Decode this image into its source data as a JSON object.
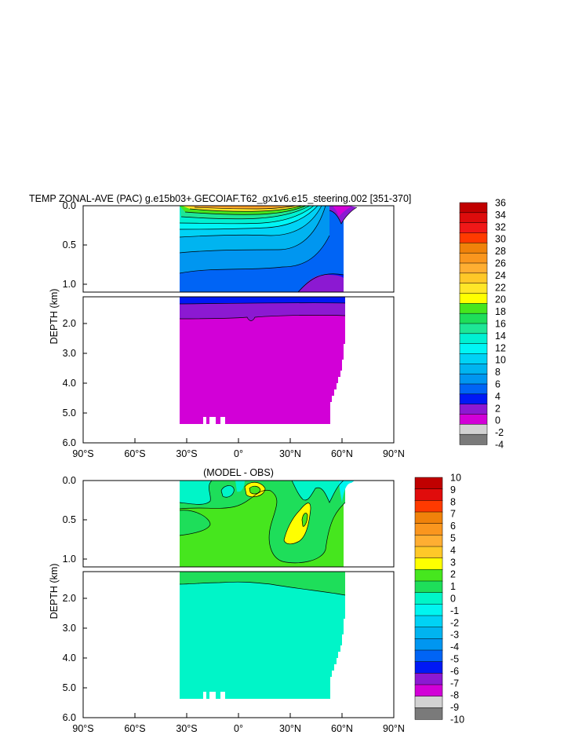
{
  "chart_data": [
    {
      "type": "heatmap",
      "title": "TEMP ZONAL-AVE (PAC) g.e15b03+.GECOIAF.T62_gx1v6.e15_steering.002 [351-370]",
      "xlabel": "",
      "ylabel": "DEPTH (km)",
      "x_ticks": [
        "90°S",
        "60°S",
        "30°S",
        "0°",
        "30°N",
        "60°N",
        "90°N"
      ],
      "y_ticks_upper": [
        "0.0",
        "0.5",
        "1.0"
      ],
      "y_ticks_lower": [
        "2.0",
        "3.0",
        "4.0",
        "5.0",
        "6.0"
      ],
      "xlim": [
        -90,
        90
      ],
      "ylim_upper_km": [
        0,
        1.1
      ],
      "ylim_lower_km": [
        1.1,
        6.0
      ],
      "data_extent_lat": [
        -34,
        62
      ],
      "data_max_depth_km": 5.4,
      "colorbar_labels": [
        "36",
        "34",
        "32",
        "30",
        "28",
        "26",
        "24",
        "22",
        "20",
        "18",
        "16",
        "14",
        "12",
        "10",
        "8",
        "6",
        "4",
        "2",
        "0",
        "-2",
        "-4"
      ],
      "colorbar_colors": [
        "#c00000",
        "#dd0c0c",
        "#f01818",
        "#ff3a00",
        "#f0820a",
        "#fa961e",
        "#ffae32",
        "#ffc828",
        "#ffe628",
        "#ffff00",
        "#46e61e",
        "#1ede5a",
        "#1ee696",
        "#00f0d2",
        "#00f5f5",
        "#00d2f5",
        "#00b4f0",
        "#0096f0",
        "#0064f5",
        "#0019f5",
        "#8c19d2",
        "#d200d7",
        "#d2d2d2",
        "#7a7a7a"
      ]
    },
    {
      "type": "heatmap",
      "title": "(MODEL - OBS)",
      "xlabel": "",
      "ylabel": "DEPTH (km)",
      "x_ticks": [
        "90°S",
        "60°S",
        "30°S",
        "0°",
        "30°N",
        "60°N",
        "90°N"
      ],
      "y_ticks_upper": [
        "0.0",
        "0.5",
        "1.0"
      ],
      "y_ticks_lower": [
        "2.0",
        "3.0",
        "4.0",
        "5.0",
        "6.0"
      ],
      "xlim": [
        -90,
        90
      ],
      "colorbar_labels": [
        "10",
        "9",
        "8",
        "7",
        "6",
        "5",
        "4",
        "3",
        "2",
        "1",
        "0",
        "-1",
        "-2",
        "-3",
        "-4",
        "-5",
        "-6",
        "-7",
        "-8",
        "-9",
        "-10"
      ],
      "colorbar_colors": [
        "#c00000",
        "#e00c0c",
        "#ff3a00",
        "#f0820a",
        "#fa961e",
        "#ffae32",
        "#ffc828",
        "#ffff00",
        "#46e61e",
        "#1ede5a",
        "#00f5c8",
        "#00f5f0",
        "#00d2f5",
        "#00b4f0",
        "#0096f0",
        "#0064f5",
        "#0019f5",
        "#8c19d2",
        "#d200d7",
        "#d2d2d2",
        "#7a7a7a"
      ]
    }
  ]
}
